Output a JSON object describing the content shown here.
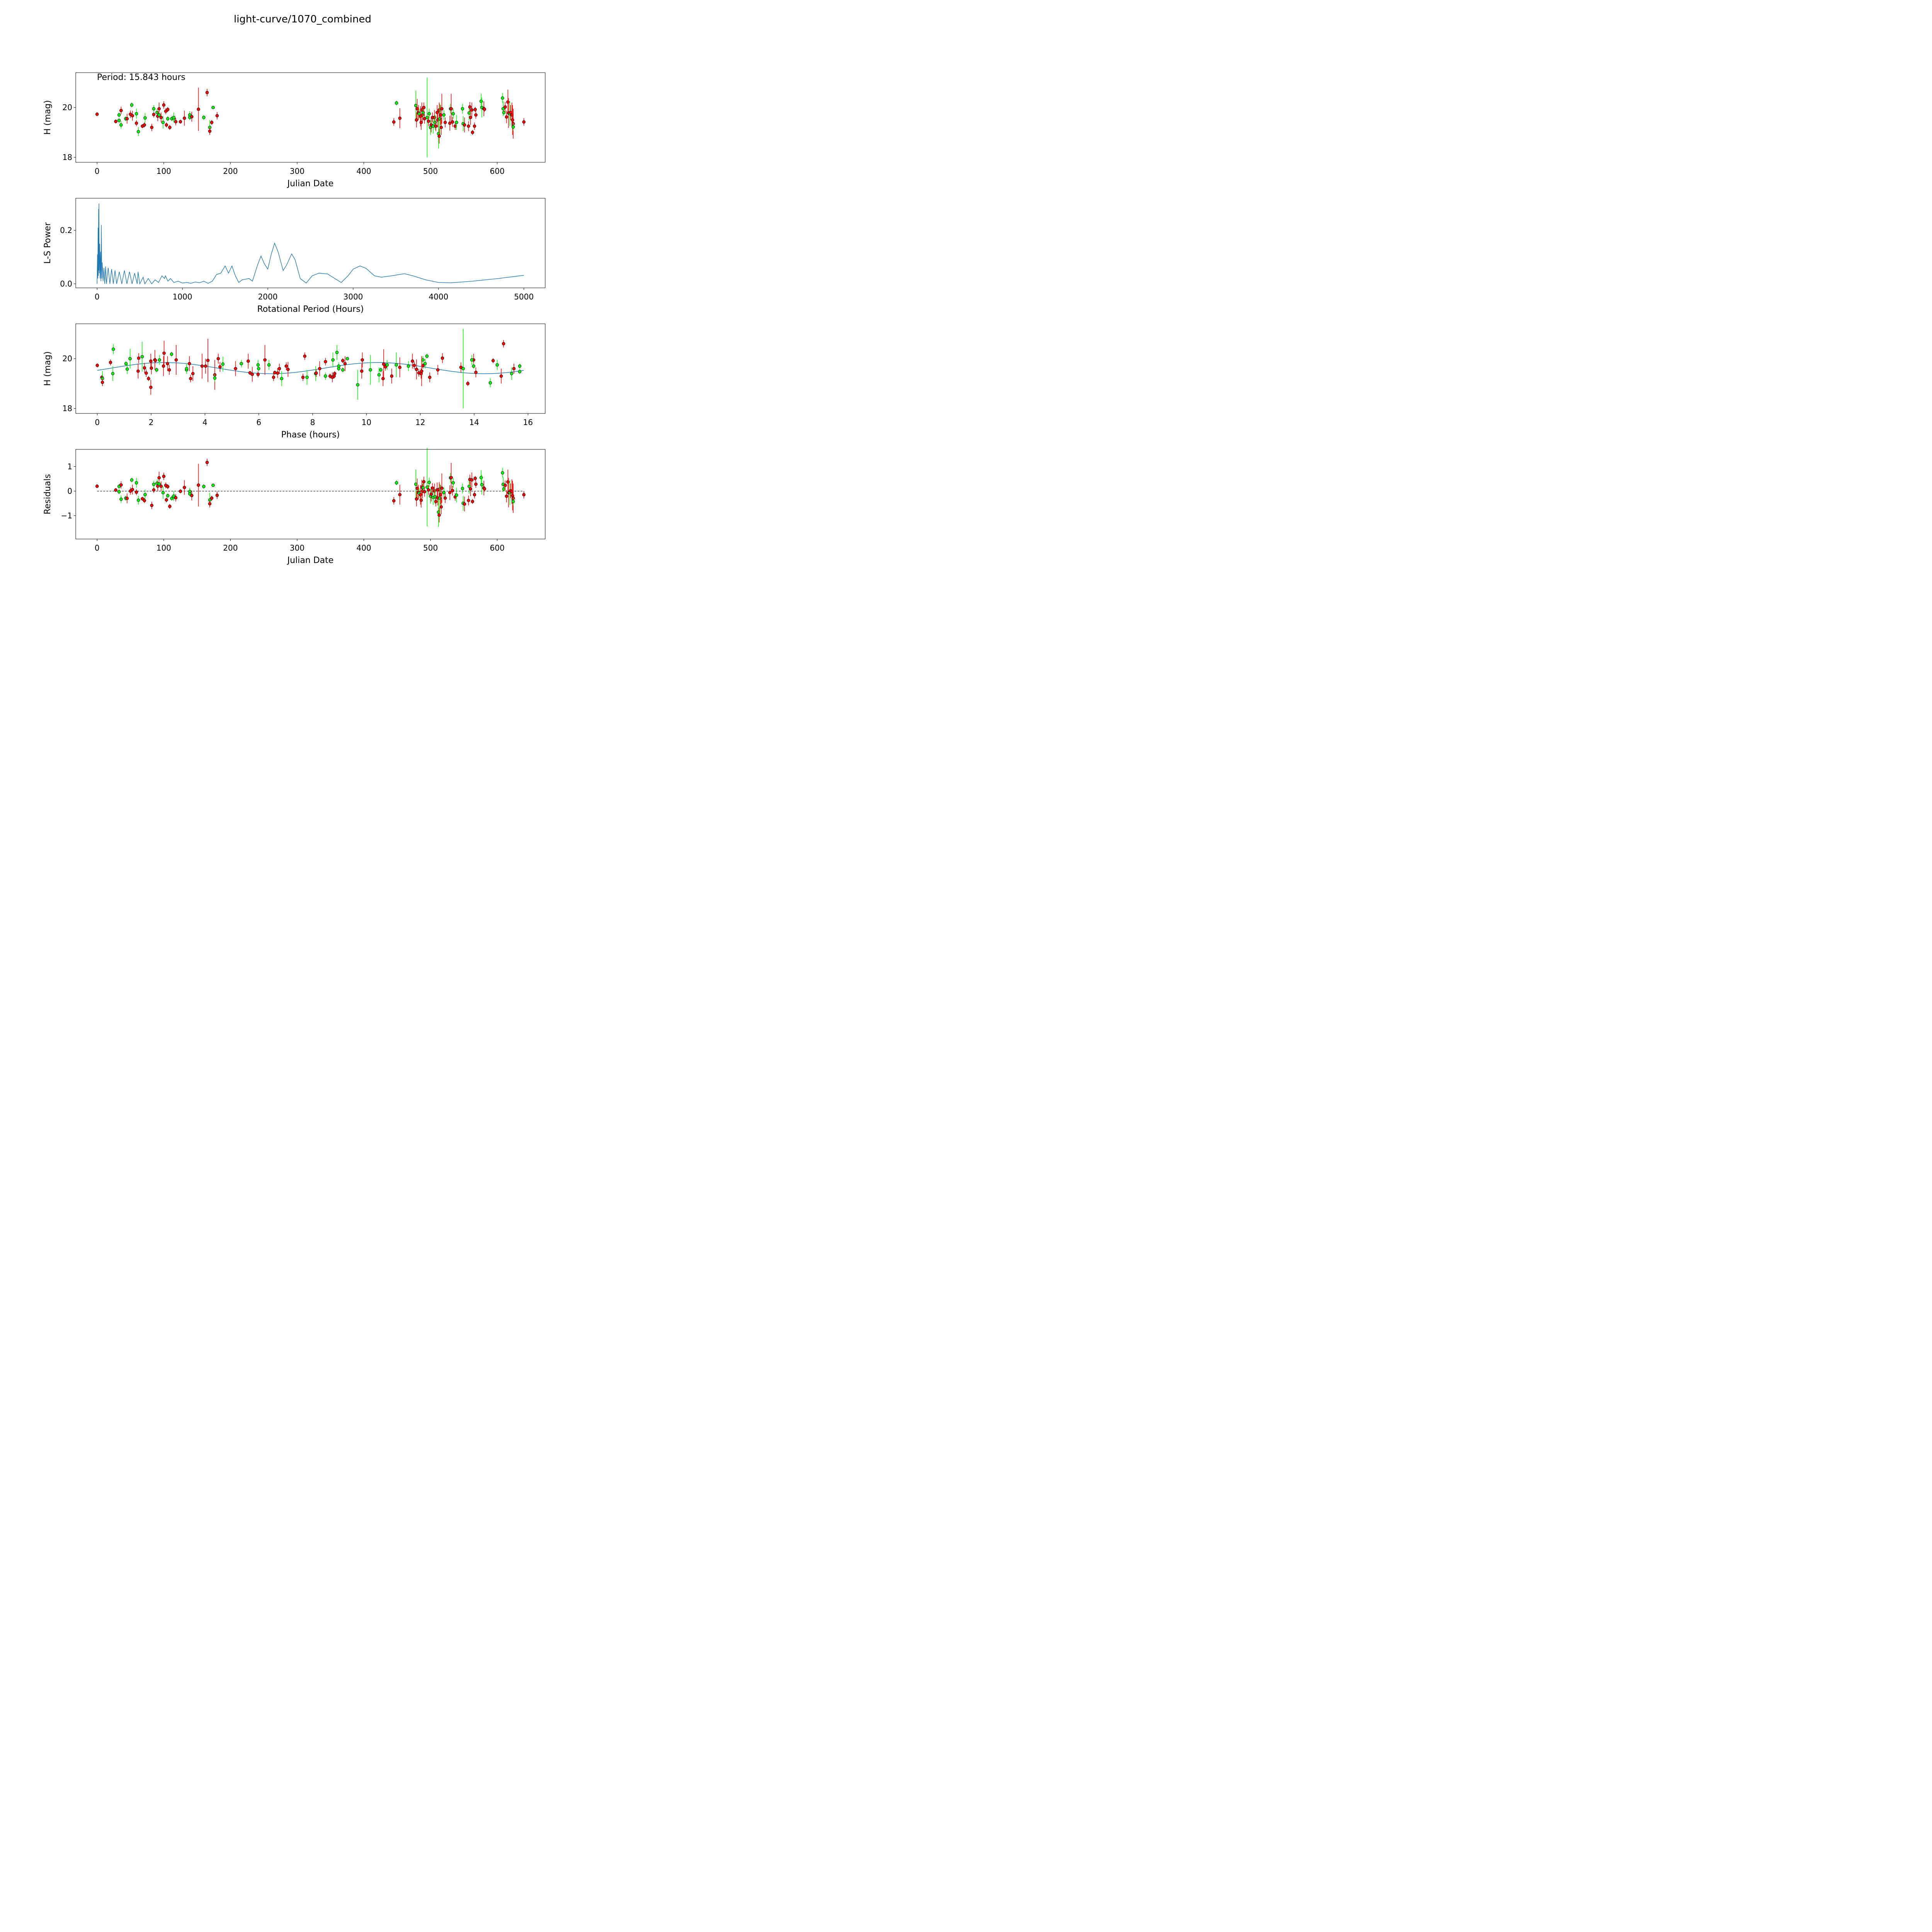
{
  "chart_data": {
    "title": "light-curve/1070_combined",
    "annotation": "Period: 15.843 hours",
    "period_hours": 15.843,
    "colors": {
      "red": "#ff0000",
      "green": "#00ff00",
      "model": "#1f77b4",
      "edge": "#000000"
    },
    "model": {
      "type": "sinusoid",
      "harmonic": 2,
      "mean": 19.62,
      "amplitude": 0.225,
      "phase_rad": -0.41
    },
    "observations_columns": [
      "julian_date",
      "H_mag",
      "error",
      "color"
    ],
    "observations": [
      [
        0,
        19.73,
        0.08,
        "r"
      ],
      [
        28,
        19.44,
        0.08,
        "r"
      ],
      [
        33,
        19.7,
        0.1,
        "g"
      ],
      [
        33,
        19.48,
        0.1,
        "g"
      ],
      [
        36,
        19.88,
        0.15,
        "r"
      ],
      [
        36,
        19.3,
        0.15,
        "g"
      ],
      [
        43,
        19.55,
        0.1,
        "g"
      ],
      [
        45,
        19.55,
        0.2,
        "r"
      ],
      [
        50,
        19.73,
        0.15,
        "r"
      ],
      [
        52,
        20.1,
        0.1,
        "g"
      ],
      [
        53,
        19.67,
        0.2,
        "r"
      ],
      [
        59,
        19.37,
        0.12,
        "r"
      ],
      [
        59,
        19.75,
        0.2,
        "g"
      ],
      [
        62,
        19.03,
        0.18,
        "g"
      ],
      [
        68,
        19.25,
        0.08,
        "r"
      ],
      [
        71,
        19.3,
        0.1,
        "r"
      ],
      [
        72,
        19.58,
        0.2,
        "g"
      ],
      [
        82,
        19.2,
        0.15,
        "r"
      ],
      [
        85,
        19.72,
        0.12,
        "r"
      ],
      [
        85,
        19.95,
        0.15,
        "g"
      ],
      [
        90,
        19.8,
        0.15,
        "g"
      ],
      [
        91,
        19.65,
        0.2,
        "r"
      ],
      [
        93,
        19.95,
        0.25,
        "r"
      ],
      [
        93,
        19.7,
        0.1,
        "g"
      ],
      [
        96,
        19.6,
        0.2,
        "r"
      ],
      [
        99,
        19.4,
        0.25,
        "g"
      ],
      [
        100,
        20.1,
        0.15,
        "r"
      ],
      [
        103,
        19.85,
        0.12,
        "r"
      ],
      [
        104,
        19.3,
        0.1,
        "r"
      ],
      [
        106,
        19.55,
        0.1,
        "g"
      ],
      [
        106,
        19.92,
        0.1,
        "r"
      ],
      [
        109,
        19.2,
        0.1,
        "r"
      ],
      [
        112,
        19.55,
        0.1,
        "g"
      ],
      [
        115,
        19.55,
        0.15,
        "g"
      ],
      [
        115,
        19.6,
        0.2,
        "g"
      ],
      [
        118,
        19.43,
        0.15,
        "r"
      ],
      [
        125,
        19.43,
        0.08,
        "r"
      ],
      [
        131,
        19.57,
        0.3,
        "r"
      ],
      [
        139,
        19.7,
        0.15,
        "g"
      ],
      [
        139,
        19.6,
        0.1,
        "g"
      ],
      [
        142,
        19.63,
        0.2,
        "r"
      ],
      [
        152,
        19.93,
        0.87,
        "r"
      ],
      [
        160,
        19.6,
        0.1,
        "g"
      ],
      [
        165,
        20.6,
        0.15,
        "r"
      ],
      [
        169,
        19.2,
        0.3,
        "g"
      ],
      [
        169,
        19.05,
        0.15,
        "r"
      ],
      [
        172,
        19.4,
        0.1,
        "r"
      ],
      [
        174,
        20.0,
        0.05,
        "g"
      ],
      [
        180,
        19.67,
        0.15,
        "r"
      ],
      [
        445,
        19.42,
        0.15,
        "r"
      ],
      [
        449,
        20.18,
        0.1,
        "g"
      ],
      [
        454,
        19.57,
        0.4,
        "r"
      ],
      [
        478,
        20.08,
        0.6,
        "g"
      ],
      [
        479,
        19.5,
        0.3,
        "r"
      ],
      [
        480,
        19.95,
        0.4,
        "r"
      ],
      [
        482,
        19.8,
        0.3,
        "r"
      ],
      [
        483,
        19.75,
        0.2,
        "g"
      ],
      [
        485,
        19.65,
        0.4,
        "r"
      ],
      [
        486,
        19.4,
        0.3,
        "r"
      ],
      [
        487,
        19.9,
        0.3,
        "r"
      ],
      [
        488,
        19.7,
        0.3,
        "r"
      ],
      [
        489,
        19.8,
        0.2,
        "g"
      ],
      [
        490,
        20.0,
        0.2,
        "r"
      ],
      [
        491,
        19.55,
        0.2,
        "r"
      ],
      [
        495,
        19.6,
        1.6,
        "g"
      ],
      [
        497,
        19.45,
        0.2,
        "r"
      ],
      [
        498,
        19.75,
        0.2,
        "g"
      ],
      [
        500,
        19.2,
        0.3,
        "g"
      ],
      [
        501,
        19.3,
        0.3,
        "r"
      ],
      [
        503,
        19.6,
        0.2,
        "r"
      ],
      [
        504,
        19.25,
        0.3,
        "g"
      ],
      [
        506,
        19.6,
        0.3,
        "r"
      ],
      [
        507,
        19.4,
        0.3,
        "g"
      ],
      [
        508,
        19.25,
        0.2,
        "r"
      ],
      [
        510,
        19.8,
        0.3,
        "r"
      ],
      [
        511,
        19.5,
        0.3,
        "r"
      ],
      [
        512,
        18.95,
        0.6,
        "g"
      ],
      [
        513,
        18.85,
        0.3,
        "r"
      ],
      [
        513,
        19.9,
        0.3,
        "r"
      ],
      [
        514,
        19.55,
        0.6,
        "g"
      ],
      [
        515,
        19.7,
        0.4,
        "r"
      ],
      [
        516,
        19.2,
        0.3,
        "r"
      ],
      [
        517,
        19.95,
        0.6,
        "r"
      ],
      [
        520,
        19.7,
        0.2,
        "g"
      ],
      [
        522,
        19.4,
        0.2,
        "r"
      ],
      [
        529,
        19.37,
        0.3,
        "r"
      ],
      [
        530,
        19.95,
        0.2,
        "g"
      ],
      [
        531,
        19.95,
        0.6,
        "r"
      ],
      [
        533,
        19.42,
        0.2,
        "r"
      ],
      [
        534,
        19.75,
        0.2,
        "g"
      ],
      [
        537,
        19.25,
        0.15,
        "r"
      ],
      [
        539,
        19.4,
        0.3,
        "g"
      ],
      [
        548,
        19.95,
        0.2,
        "g"
      ],
      [
        549,
        19.35,
        0.3,
        "g"
      ],
      [
        551,
        19.3,
        0.3,
        "r"
      ],
      [
        557,
        19.25,
        0.2,
        "r"
      ],
      [
        558,
        19.78,
        0.3,
        "g"
      ],
      [
        559,
        20.02,
        0.2,
        "r"
      ],
      [
        560,
        19.6,
        0.3,
        "r"
      ],
      [
        562,
        19.9,
        0.3,
        "r"
      ],
      [
        563,
        19.0,
        0.1,
        "r"
      ],
      [
        566,
        19.25,
        0.15,
        "r"
      ],
      [
        567,
        19.92,
        0.1,
        "r"
      ],
      [
        568,
        19.7,
        0.15,
        "r"
      ],
      [
        576,
        20.25,
        0.3,
        "g"
      ],
      [
        577,
        20.0,
        0.4,
        "g"
      ],
      [
        580,
        19.95,
        0.3,
        "r"
      ],
      [
        581,
        19.93,
        0.1,
        "r"
      ],
      [
        608,
        20.38,
        0.2,
        "g"
      ],
      [
        609,
        19.95,
        0.3,
        "g"
      ],
      [
        610,
        19.8,
        0.1,
        "g"
      ],
      [
        612,
        20.02,
        0.2,
        "r"
      ],
      [
        614,
        19.62,
        0.25,
        "r"
      ],
      [
        616,
        20.22,
        0.5,
        "r"
      ],
      [
        617,
        19.78,
        0.6,
        "r"
      ],
      [
        619,
        19.75,
        0.5,
        "g"
      ],
      [
        620,
        19.8,
        0.3,
        "r"
      ],
      [
        622,
        19.7,
        0.5,
        "r"
      ],
      [
        623,
        19.5,
        0.6,
        "r"
      ],
      [
        624,
        19.35,
        0.6,
        "r"
      ],
      [
        624,
        19.22,
        0.15,
        "g"
      ],
      [
        640,
        19.42,
        0.15,
        "r"
      ]
    ],
    "periodogram": [
      [
        0,
        0
      ],
      [
        5,
        0.11
      ],
      [
        8,
        0.02
      ],
      [
        12,
        0.21
      ],
      [
        15,
        0.03
      ],
      [
        18,
        0.28
      ],
      [
        20,
        0.05
      ],
      [
        22,
        0.3
      ],
      [
        25,
        0.04
      ],
      [
        30,
        0.15
      ],
      [
        35,
        0.02
      ],
      [
        40,
        0.12
      ],
      [
        45,
        0.01
      ],
      [
        50,
        0.22
      ],
      [
        55,
        0.02
      ],
      [
        60,
        0.08
      ],
      [
        70,
        0.01
      ],
      [
        80,
        0.06
      ],
      [
        90,
        0
      ],
      [
        100,
        0.065
      ],
      [
        110,
        0
      ],
      [
        130,
        0.06
      ],
      [
        150,
        0
      ],
      [
        170,
        0.055
      ],
      [
        190,
        0
      ],
      [
        210,
        0.05
      ],
      [
        230,
        0
      ],
      [
        260,
        0.045
      ],
      [
        290,
        0
      ],
      [
        320,
        0.05
      ],
      [
        350,
        0
      ],
      [
        380,
        0.045
      ],
      [
        410,
        0
      ],
      [
        440,
        0.04
      ],
      [
        470,
        0
      ],
      [
        480,
        0.045
      ],
      [
        500,
        0
      ],
      [
        540,
        0.025
      ],
      [
        560,
        0
      ],
      [
        600,
        0.02
      ],
      [
        640,
        0
      ],
      [
        680,
        0.015
      ],
      [
        720,
        0.005
      ],
      [
        760,
        0.03
      ],
      [
        790,
        0.02
      ],
      [
        800,
        0.03
      ],
      [
        830,
        0.01
      ],
      [
        860,
        0.02
      ],
      [
        900,
        0.005
      ],
      [
        950,
        0.01
      ],
      [
        1000,
        0.003
      ],
      [
        1050,
        0.005
      ],
      [
        1100,
        0.002
      ],
      [
        1150,
        0.007
      ],
      [
        1200,
        0.004
      ],
      [
        1250,
        0.01
      ],
      [
        1300,
        0.002
      ],
      [
        1350,
        0.01
      ],
      [
        1400,
        0.035
      ],
      [
        1450,
        0.04
      ],
      [
        1500,
        0.067
      ],
      [
        1540,
        0.04
      ],
      [
        1580,
        0.067
      ],
      [
        1620,
        0.03
      ],
      [
        1660,
        0.005
      ],
      [
        1700,
        0.015
      ],
      [
        1780,
        0.02
      ],
      [
        1820,
        0.01
      ],
      [
        1880,
        0.07
      ],
      [
        1920,
        0.104
      ],
      [
        1960,
        0.075
      ],
      [
        2000,
        0.055
      ],
      [
        2040,
        0.11
      ],
      [
        2080,
        0.152
      ],
      [
        2120,
        0.12
      ],
      [
        2180,
        0.05
      ],
      [
        2220,
        0.07
      ],
      [
        2280,
        0.112
      ],
      [
        2320,
        0.09
      ],
      [
        2380,
        0.02
      ],
      [
        2450,
        0.003
      ],
      [
        2520,
        0.03
      ],
      [
        2600,
        0.04
      ],
      [
        2700,
        0.037
      ],
      [
        2760,
        0.025
      ],
      [
        2860,
        0.005
      ],
      [
        2940,
        0.03
      ],
      [
        3000,
        0.055
      ],
      [
        3080,
        0.067
      ],
      [
        3150,
        0.058
      ],
      [
        3250,
        0.03
      ],
      [
        3330,
        0.025
      ],
      [
        3450,
        0.03
      ],
      [
        3600,
        0.038
      ],
      [
        3700,
        0.03
      ],
      [
        3850,
        0.015
      ],
      [
        4000,
        0.005
      ],
      [
        4150,
        0.004
      ],
      [
        4400,
        0.01
      ],
      [
        4700,
        0.02
      ],
      [
        5000,
        0.032
      ]
    ],
    "panels": [
      {
        "type": "scatter",
        "name": "light-curve",
        "xlabel": "Julian Date",
        "ylabel": "H (mag)",
        "xlim": [
          -32,
          672
        ],
        "ylim": [
          17.8,
          21.4
        ],
        "xticks": [
          "0",
          "100",
          "200",
          "300",
          "400",
          "500",
          "600"
        ],
        "xtick_values": [
          0,
          100,
          200,
          300,
          400,
          500,
          600
        ],
        "yticks": [
          "18",
          "20"
        ],
        "ytick_values": [
          18,
          20
        ]
      },
      {
        "type": "line",
        "name": "periodogram",
        "xlabel": "Rotational Period (Hours)",
        "ylabel": "L-S Power",
        "xlim": [
          -250,
          5250
        ],
        "ylim": [
          -0.015,
          0.32
        ],
        "xticks": [
          "0",
          "1000",
          "2000",
          "3000",
          "4000",
          "5000"
        ],
        "xtick_values": [
          0,
          1000,
          2000,
          3000,
          4000,
          5000
        ],
        "yticks": [
          "0.0",
          "0.2"
        ],
        "ytick_values": [
          0,
          0.2
        ]
      },
      {
        "type": "scatter",
        "name": "phased",
        "xlabel": "Phase (hours)",
        "ylabel": "H (mag)",
        "xlim": [
          -0.8,
          16.64
        ],
        "ylim": [
          17.8,
          21.4
        ],
        "xticks": [
          "0",
          "2",
          "4",
          "6",
          "8",
          "10",
          "12",
          "14",
          "16"
        ],
        "xtick_values": [
          0,
          2,
          4,
          6,
          8,
          10,
          12,
          14,
          16
        ],
        "yticks": [
          "18",
          "20"
        ],
        "ytick_values": [
          18,
          20
        ]
      },
      {
        "type": "scatter",
        "name": "residuals",
        "xlabel": "Julian Date",
        "ylabel": "Residuals",
        "xlim": [
          -32,
          672
        ],
        "ylim": [
          -1.95,
          1.7
        ],
        "xticks": [
          "0",
          "100",
          "200",
          "300",
          "400",
          "500",
          "600"
        ],
        "xtick_values": [
          0,
          100,
          200,
          300,
          400,
          500,
          600
        ],
        "yticks": [
          "−1",
          "0",
          "1"
        ],
        "ytick_values": [
          -1,
          0,
          1
        ]
      }
    ]
  }
}
